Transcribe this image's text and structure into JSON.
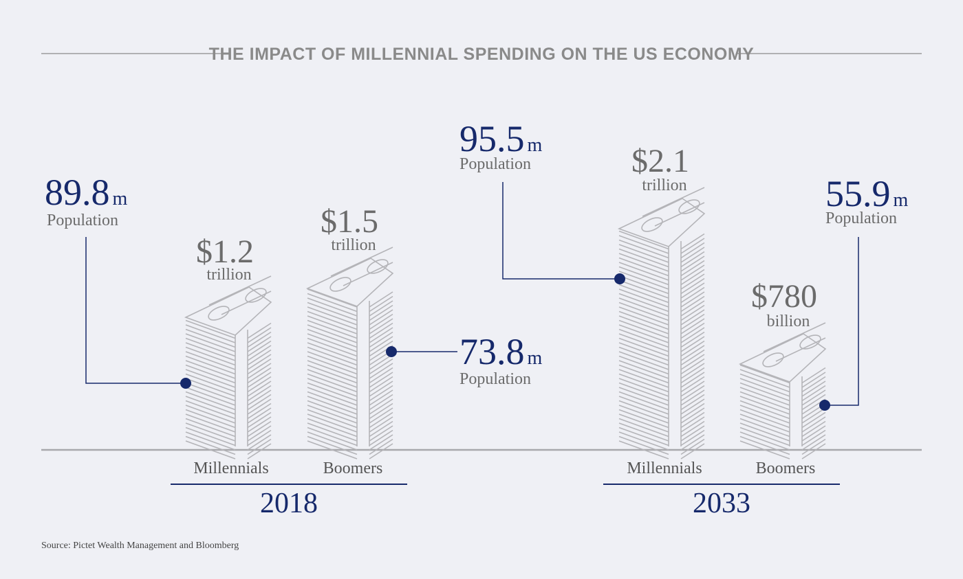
{
  "title": "THE IMPACT OF MILLENNIAL SPENDING ON THE US ECONOMY",
  "groups": [
    {
      "year": "2018",
      "items": [
        {
          "label": "Millennials",
          "amount": "$1.2",
          "amount_unit": "trillion",
          "population": "89.8",
          "population_unit": "m",
          "population_label": "Population"
        },
        {
          "label": "Boomers",
          "amount": "$1.5",
          "amount_unit": "trillion",
          "population": "73.8",
          "population_unit": "m",
          "population_label": "Population"
        }
      ]
    },
    {
      "year": "2033",
      "items": [
        {
          "label": "Millennials",
          "amount": "$2.1",
          "amount_unit": "trillion",
          "population": "95.5",
          "population_unit": "m",
          "population_label": "Population"
        },
        {
          "label": "Boomers",
          "amount": "$780",
          "amount_unit": "billion",
          "population": "55.9",
          "population_unit": "m",
          "population_label": "Population"
        }
      ]
    }
  ],
  "source": "Source: Pictet Wealth Management and Bloomberg"
}
